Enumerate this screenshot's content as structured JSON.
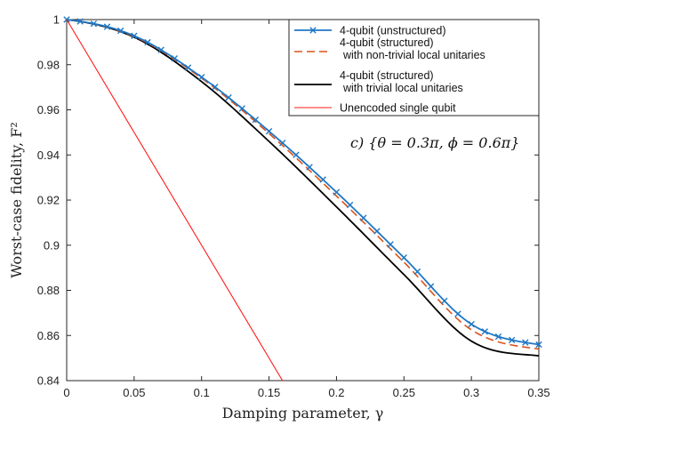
{
  "chart_data": {
    "type": "line",
    "xlabel": "Damping parameter, γ",
    "ylabel": "Worst-case fidelity, F²",
    "xlim": [
      0,
      0.35
    ],
    "ylim": [
      0.84,
      1.0
    ],
    "xticks": [
      "0",
      "0.05",
      "0.1",
      "0.15",
      "0.2",
      "0.25",
      "0.3",
      "0.35"
    ],
    "yticks": [
      "0.84",
      "0.86",
      "0.88",
      "0.9",
      "0.92",
      "0.94",
      "0.96",
      "0.98",
      "1"
    ],
    "annotation": "c) {θ = 0.3π, ϕ = 0.6π}",
    "legend_position": "top-right",
    "x": [
      0,
      0.05,
      0.1,
      0.15,
      0.2,
      0.25,
      0.3,
      0.35
    ],
    "series": [
      {
        "name": "4-qubit (unstructured)",
        "color": "#1f77c4",
        "style": "solid-x-markers",
        "values": [
          1.0,
          0.9928,
          0.9745,
          0.9505,
          0.9235,
          0.8945,
          0.865,
          0.856
        ]
      },
      {
        "name": "4-qubit (structured)",
        "name_line2": "with non-trivial local unitaries",
        "color": "#d95319",
        "style": "dashed",
        "values": [
          1.0,
          0.9925,
          0.974,
          0.9495,
          0.9218,
          0.8925,
          0.8625,
          0.854
        ]
      },
      {
        "name": "4-qubit (structured)",
        "name_line2": "with trivial local unitaries",
        "color": "#000000",
        "style": "solid",
        "values": [
          1.0,
          0.9922,
          0.9725,
          0.946,
          0.917,
          0.887,
          0.8575,
          0.851
        ]
      },
      {
        "name": "Unencoded single qubit",
        "color": "#ff1a1a",
        "style": "solid-thin",
        "x": [
          0,
          0.16
        ],
        "values": [
          1.0,
          0.84
        ]
      }
    ]
  }
}
